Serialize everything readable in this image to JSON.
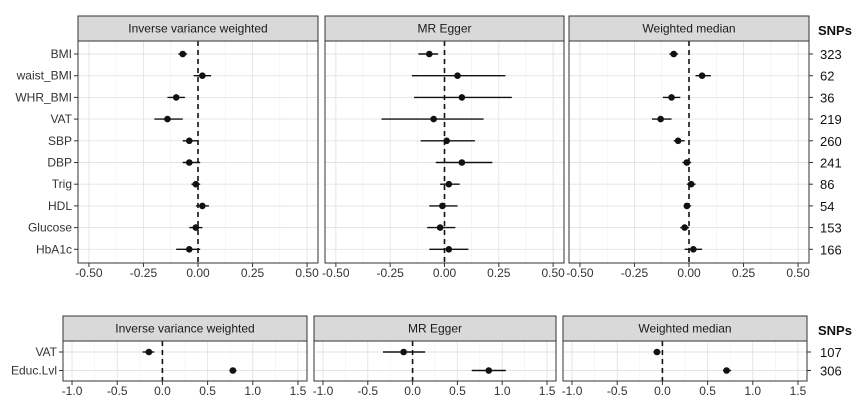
{
  "chart_data": [
    {
      "type": "forest",
      "panels": [
        "Inverse variance weighted",
        "MR Egger",
        "Weighted median"
      ],
      "rows": [
        "BMI",
        "waist_BMI",
        "WHR_BMI",
        "VAT",
        "SBP",
        "DBP",
        "Trig",
        "HDL",
        "Glucose",
        "HbA1c"
      ],
      "snps_header": "SNPs",
      "snps": [
        "323",
        "62",
        "36",
        "219",
        "260",
        "241",
        "86",
        "54",
        "153",
        "166"
      ],
      "xlim": [
        -0.55,
        0.55
      ],
      "xticks": [
        -0.5,
        -0.25,
        0,
        0.25,
        0.5
      ],
      "xtick_labels": [
        "-0.50",
        "-0.25",
        "0.00",
        "0.25",
        "0.50"
      ],
      "reference_line": 0,
      "estimates": [
        [
          {
            "est": -0.07,
            "lo": -0.09,
            "hi": -0.05
          },
          {
            "est": 0.02,
            "lo": -0.02,
            "hi": 0.06
          },
          {
            "est": -0.1,
            "lo": -0.14,
            "hi": -0.06
          },
          {
            "est": -0.14,
            "lo": -0.2,
            "hi": -0.07
          },
          {
            "est": -0.04,
            "lo": -0.07,
            "hi": 0.0
          },
          {
            "est": -0.04,
            "lo": -0.07,
            "hi": 0.01
          },
          {
            "est": -0.01,
            "lo": -0.03,
            "hi": 0.01
          },
          {
            "est": 0.02,
            "lo": -0.01,
            "hi": 0.05
          },
          {
            "est": -0.01,
            "lo": -0.04,
            "hi": 0.02
          },
          {
            "est": -0.04,
            "lo": -0.1,
            "hi": 0.01
          }
        ],
        [
          {
            "est": -0.07,
            "lo": -0.12,
            "hi": -0.03
          },
          {
            "est": 0.06,
            "lo": -0.15,
            "hi": 0.28
          },
          {
            "est": 0.08,
            "lo": -0.14,
            "hi": 0.31
          },
          {
            "est": -0.05,
            "lo": -0.29,
            "hi": 0.18
          },
          {
            "est": 0.01,
            "lo": -0.11,
            "hi": 0.14
          },
          {
            "est": 0.08,
            "lo": -0.04,
            "hi": 0.22
          },
          {
            "est": 0.02,
            "lo": -0.02,
            "hi": 0.07
          },
          {
            "est": -0.01,
            "lo": -0.07,
            "hi": 0.06
          },
          {
            "est": -0.02,
            "lo": -0.08,
            "hi": 0.05
          },
          {
            "est": 0.02,
            "lo": -0.07,
            "hi": 0.11
          }
        ],
        [
          {
            "est": -0.07,
            "lo": -0.09,
            "hi": -0.05
          },
          {
            "est": 0.06,
            "lo": 0.03,
            "hi": 0.1
          },
          {
            "est": -0.08,
            "lo": -0.12,
            "hi": -0.04
          },
          {
            "est": -0.13,
            "lo": -0.17,
            "hi": -0.08
          },
          {
            "est": -0.05,
            "lo": -0.07,
            "hi": -0.02
          },
          {
            "est": -0.01,
            "lo": -0.03,
            "hi": 0.01
          },
          {
            "est": 0.01,
            "lo": -0.01,
            "hi": 0.03
          },
          {
            "est": -0.01,
            "lo": -0.02,
            "hi": 0.01
          },
          {
            "est": -0.02,
            "lo": -0.04,
            "hi": 0.0
          },
          {
            "est": 0.02,
            "lo": -0.02,
            "hi": 0.06
          }
        ]
      ]
    },
    {
      "type": "forest",
      "panels": [
        "Inverse variance weighted",
        "MR Egger",
        "Weighted median"
      ],
      "rows": [
        "VAT",
        "Educ.Lvl"
      ],
      "snps_header": "SNPs",
      "snps": [
        "107",
        "306"
      ],
      "xlim": [
        -1.1,
        1.6
      ],
      "xticks": [
        -1,
        -0.5,
        0,
        0.5,
        1,
        1.5
      ],
      "xtick_labels": [
        "-1.0",
        "-0.5",
        "0.0",
        "0.5",
        "1.0",
        "1.5"
      ],
      "reference_line": 0,
      "estimates": [
        [
          {
            "est": -0.15,
            "lo": -0.22,
            "hi": -0.09
          },
          {
            "est": 0.78,
            "lo": 0.74,
            "hi": 0.82
          }
        ],
        [
          {
            "est": -0.1,
            "lo": -0.33,
            "hi": 0.14
          },
          {
            "est": 0.85,
            "lo": 0.66,
            "hi": 1.04
          }
        ],
        [
          {
            "est": -0.06,
            "lo": -0.1,
            "hi": -0.02
          },
          {
            "est": 0.71,
            "lo": 0.67,
            "hi": 0.76
          }
        ]
      ]
    }
  ]
}
